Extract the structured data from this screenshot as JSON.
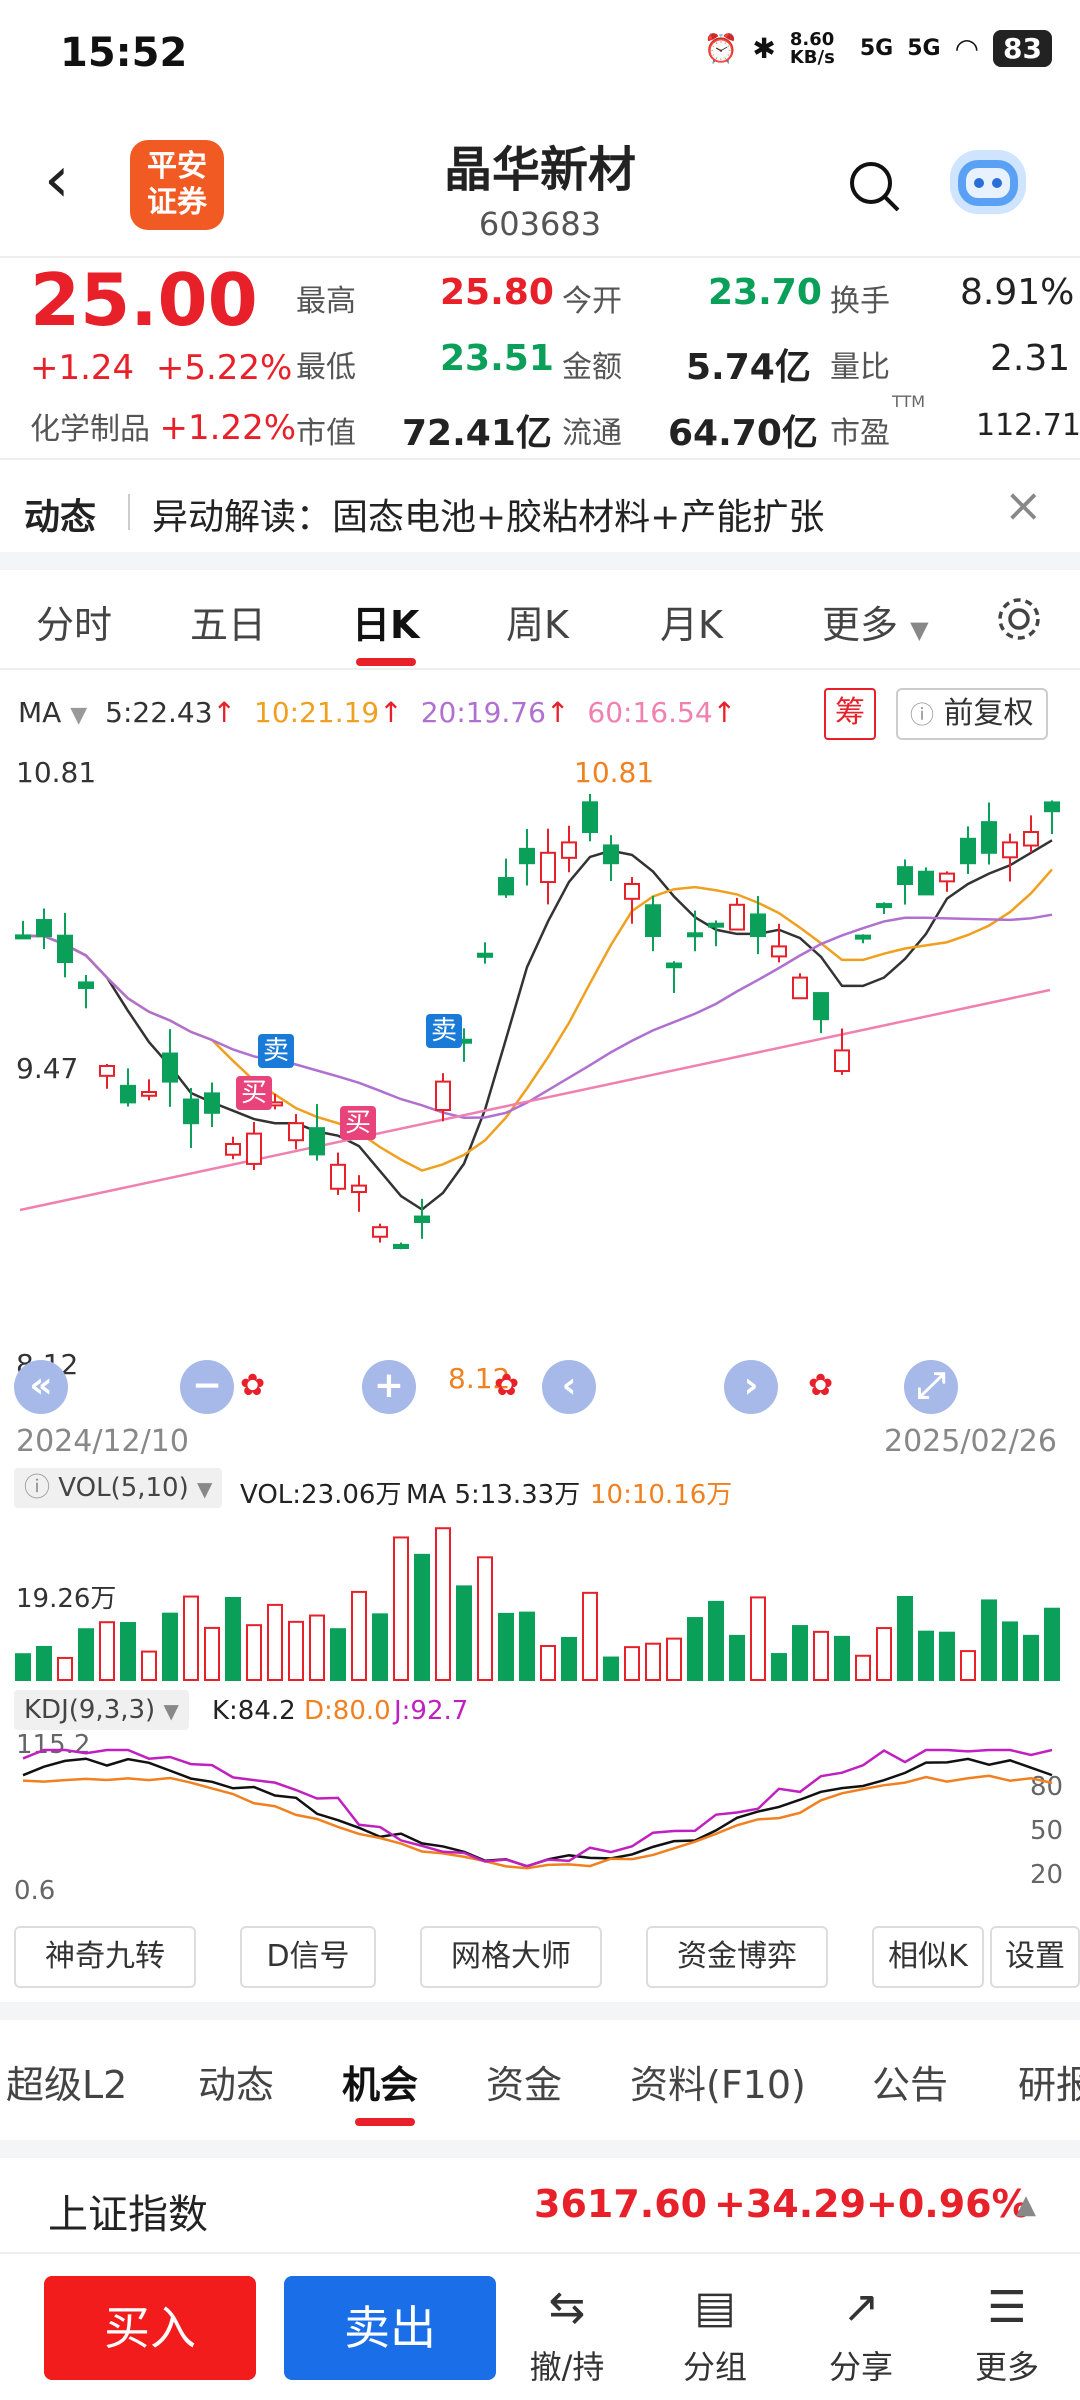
{
  "status": {
    "time": "15:52",
    "net_speed": "8.60 KB/s",
    "signal1": "5G",
    "signal2": "5G",
    "battery": "83"
  },
  "header": {
    "back": "<",
    "logo_line1": "平安",
    "logo_line2": "证券",
    "name": "晶华新材",
    "code": "603683"
  },
  "quote": {
    "price": "25.00",
    "change": "+1.24",
    "change_pct": "+5.22%",
    "industry_label": "化学制品",
    "industry_pct": "+1.22%",
    "high_label": "最高",
    "high": "25.80",
    "open_label": "今开",
    "open": "23.70",
    "turnover_label": "换手",
    "turnover": "8.91%",
    "low_label": "最低",
    "low": "23.51",
    "amount_label": "金额",
    "amount": "5.74亿",
    "vol_ratio_label": "量比",
    "vol_ratio": "2.31",
    "mcap_label": "市值",
    "mcap": "72.41亿",
    "float_label": "流通",
    "float": "64.70亿",
    "pe_label": "市盈",
    "pe_sup": "TTM",
    "pe": "112.71"
  },
  "news": {
    "tag": "动态",
    "text": "异动解读：固态电池+胶粘材料+产能扩张",
    "close": "×"
  },
  "chart_tabs": [
    "分时",
    "五日",
    "日K",
    "周K",
    "月K",
    "更多"
  ],
  "ma": {
    "label": "MA",
    "ma5": "5:22.43",
    "ma10": "10:21.19",
    "ma20": "20:19.76",
    "ma60": "60:16.54",
    "arrow": "↑",
    "chip": "筹",
    "adjust": "前复权"
  },
  "colors": {
    "up": "#e8202a",
    "down": "#0aa05a",
    "ma5": "#333333",
    "ma10": "#f0a020",
    "ma20": "#b070d0",
    "ma60": "#f080b0"
  },
  "kline": {
    "top_label": "10.81",
    "mid_label": "9.47",
    "bottom_label": "8.12",
    "max_marker": "10.81",
    "min_marker": "8.12",
    "start_date": "2024/12/10",
    "end_date": "2025/02/26",
    "signal_buy": "买",
    "signal_sell": "卖"
  },
  "chart_controls": {
    "rewind": "«",
    "zoom_out": "−",
    "zoom_in": "+",
    "prev": "‹",
    "next": "›",
    "fullscreen": "⤢",
    "star": "✿"
  },
  "volume": {
    "label": "VOL(5,10)",
    "vol": "VOL:23.06万",
    "ma5": "MA 5:13.33万",
    "ma10": "10:10.16万",
    "axis_label": "19.26万"
  },
  "kdj": {
    "label": "KDJ(9,3,3)",
    "k": "K:84.2",
    "d": "D:80.0",
    "j": "J:92.7",
    "top": "115.2",
    "bottom": "0.6",
    "level80": "80",
    "level50": "50",
    "level20": "20"
  },
  "tools": [
    "神奇九转",
    "D信号",
    "网格大师",
    "资金博弈",
    "相似K",
    "设置"
  ],
  "content_tabs": [
    "超级L2",
    "动态",
    "机会",
    "资金",
    "资料(F10)",
    "公告",
    "研报"
  ],
  "index": {
    "name": "上证指数",
    "value": "3617.60",
    "change": "+34.29",
    "pct": "+0.96%"
  },
  "bottom_bar": {
    "buy": "买入",
    "sell": "卖出",
    "items": [
      {
        "label": "撤/持",
        "icon": "withdraw-icon"
      },
      {
        "label": "分组",
        "icon": "group-icon"
      },
      {
        "label": "分享",
        "icon": "share-icon"
      },
      {
        "label": "更多",
        "icon": "more-icon"
      }
    ]
  }
}
